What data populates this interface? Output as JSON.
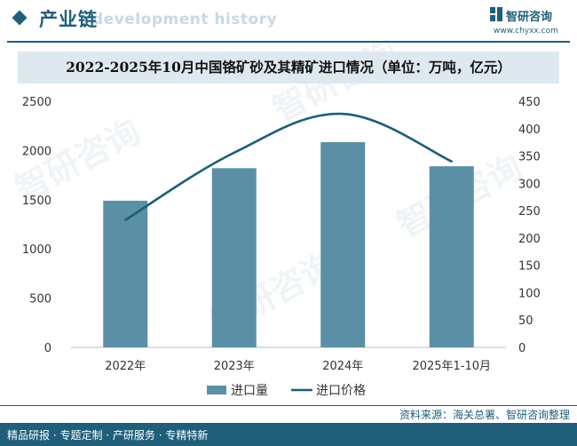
{
  "header": {
    "title": "产业链",
    "ghost_subtitle": "development history",
    "brand_name": "智研咨询",
    "brand_url": "www.chyxx.com"
  },
  "chart_title": "2022-2025年10月中国铬矿砂及其精矿进口情况（单位：万吨，亿元）",
  "watermark": "智研咨询",
  "footer": {
    "source": "资料来源：海关总署、智研咨询整理",
    "slogan": "精品研报 · 专题定制 · 产研服务 · 专精特新"
  },
  "colors": {
    "brand": "#1f5f7a",
    "bar": "#5b8fa6",
    "line": "#1a5f78"
  },
  "chart_data": {
    "type": "bar+line",
    "title": "2022-2025年10月中国铬矿砂及其精矿进口情况（单位：万吨，亿元）",
    "categories": [
      "2022年",
      "2023年",
      "2024年",
      "2025年1-10月"
    ],
    "series": [
      {
        "name": "进口量",
        "type": "bar",
        "axis": "left",
        "values": [
          1490,
          1820,
          2085,
          1840
        ]
      },
      {
        "name": "进口价格",
        "type": "line",
        "axis": "right",
        "values": [
          233,
          356,
          427,
          340
        ]
      }
    ],
    "left_axis": {
      "min": 0,
      "max": 2500,
      "ticks": [
        0,
        500,
        1000,
        1500,
        2000,
        2500
      ]
    },
    "right_axis": {
      "min": 0,
      "max": 450,
      "ticks": [
        0,
        50,
        100,
        150,
        200,
        250,
        300,
        350,
        400,
        450
      ]
    },
    "grid": false,
    "legend_position": "bottom"
  }
}
